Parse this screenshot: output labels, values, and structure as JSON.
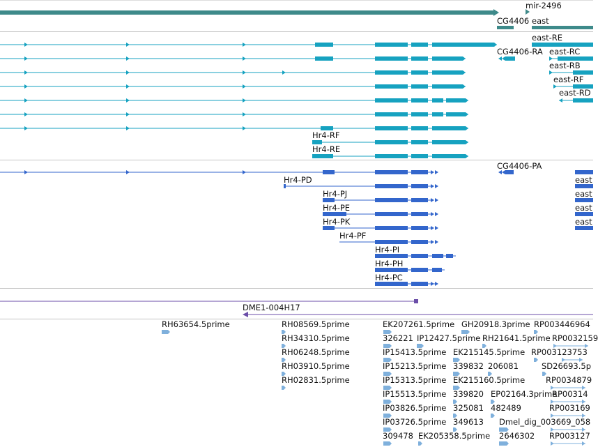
{
  "colors": {
    "teal_dark": "#3e8a8a",
    "teal": "#16a2c0",
    "blue": "#3366cc",
    "purple": "#6b4ea8",
    "light_blue": "#7fb0dc",
    "separator": "#c4c4c4"
  },
  "tracks": {
    "top": {
      "labels": [
        "mir-2496",
        "CG4406",
        "east"
      ]
    },
    "transcripts_teal": {
      "labels": [
        "east-RE",
        "CG4406-RA",
        "east-RC",
        "east-RB",
        "east-RF",
        "east-RD",
        "Hr4-RF",
        "Hr4-RE"
      ]
    },
    "transcripts_blue": {
      "labels": [
        "CG4406-PA",
        "Hr4-PD",
        "Hr4-PJ",
        "Hr4-PE",
        "Hr4-PK",
        "Hr4-PF",
        "Hr4-PI",
        "Hr4-PH",
        "Hr4-PC"
      ],
      "right_labels": [
        "east",
        "east",
        "east",
        "east"
      ]
    },
    "clone": {
      "label": "DME1-004H17"
    },
    "ests": {
      "labels": [
        "RH63654.5prime",
        "RH08569.5prime",
        "RH34310.5prime",
        "RH06248.5prime",
        "RH03910.5prime",
        "RH02831.5prime",
        "EK207261.5prime",
        "GH20918.3prime",
        "RP003446964",
        "326221",
        "IP12427.5prime",
        "RH21641.5prime",
        "RP0032159",
        "IP15413.5prime",
        "EK215145.5prime",
        "RP003123753",
        "IP15213.5prime",
        "339832",
        "206081",
        "SD26693.5p",
        "IP15313.5prime",
        "EK215160.5prime",
        "RP0034879",
        "IP15513.5prime",
        "339820",
        "EP02164.3prime",
        "RP00314",
        "IP03826.5prime",
        "325081",
        "482489",
        "RP003169",
        "IP03726.5prime",
        "349613",
        "Dmel_dig_003669_058",
        "309478",
        "EK205358.5prime",
        "2646302",
        "RP003127"
      ]
    }
  }
}
